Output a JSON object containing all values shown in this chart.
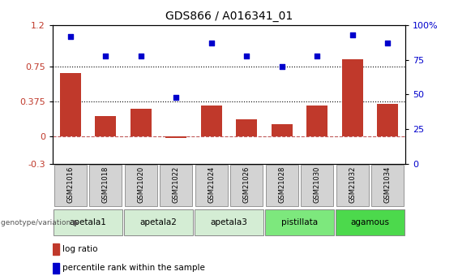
{
  "title": "GDS866 / A016341_01",
  "samples": [
    "GSM21016",
    "GSM21018",
    "GSM21020",
    "GSM21022",
    "GSM21024",
    "GSM21026",
    "GSM21028",
    "GSM21030",
    "GSM21032",
    "GSM21034"
  ],
  "log_ratio": [
    0.68,
    0.22,
    0.3,
    -0.02,
    0.33,
    0.18,
    0.13,
    0.33,
    0.83,
    0.35
  ],
  "percentile_rank": [
    92,
    78,
    78,
    48,
    87,
    78,
    70,
    78,
    93,
    87
  ],
  "ylim_left": [
    -0.3,
    1.2
  ],
  "ylim_right": [
    0,
    100
  ],
  "yticks_left": [
    -0.3,
    0,
    0.375,
    0.75,
    1.2
  ],
  "yticks_right": [
    0,
    25,
    50,
    75,
    100
  ],
  "hlines": [
    0.75,
    0.375
  ],
  "bar_color": "#c0392b",
  "dot_color": "#0000cc",
  "groups": [
    {
      "name": "apetala1",
      "start": 0,
      "end": 2,
      "color": "#d4edd4"
    },
    {
      "name": "apetala2",
      "start": 2,
      "end": 4,
      "color": "#d4edd4"
    },
    {
      "name": "apetala3",
      "start": 4,
      "end": 6,
      "color": "#d4edd4"
    },
    {
      "name": "pistillata",
      "start": 6,
      "end": 8,
      "color": "#7de87d"
    },
    {
      "name": "agamous",
      "start": 8,
      "end": 10,
      "color": "#4cd94c"
    }
  ],
  "legend_bar_label": "log ratio",
  "legend_dot_label": "percentile rank within the sample",
  "genotype_label": "genotype/variation"
}
